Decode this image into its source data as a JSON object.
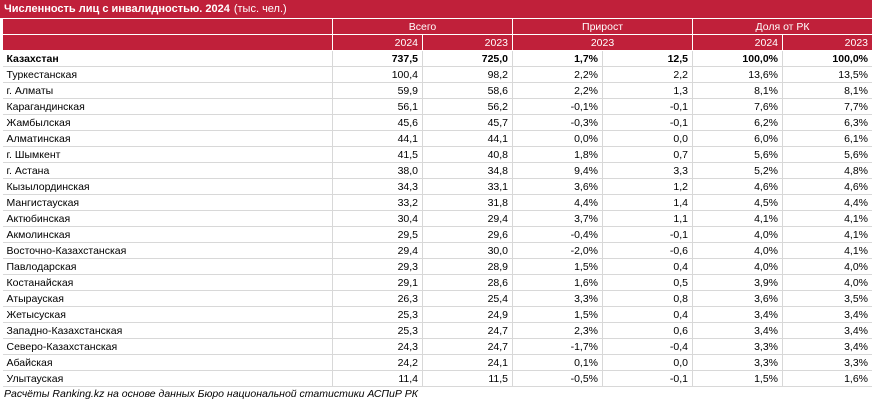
{
  "title": {
    "bold": "Численность лиц с инвалидностью. 2024",
    "unit": "(тыс. чел.)"
  },
  "headers": {
    "group1": "Всего",
    "group2": "Прирост",
    "group3": "Доля от РК",
    "g1_y1": "2024",
    "g1_y2": "2023",
    "g2_y1": "2023",
    "g3_y1": "2024",
    "g3_y2": "2023"
  },
  "rows": [
    {
      "name": "Казахстан",
      "v2024": "737,5",
      "v2023": "725,0",
      "gr_pct": "1,7%",
      "gr_abs": "12,5",
      "sh2024": "100,0%",
      "sh2023": "100,0%"
    },
    {
      "name": "Туркестанская",
      "v2024": "100,4",
      "v2023": "98,2",
      "gr_pct": "2,2%",
      "gr_abs": "2,2",
      "sh2024": "13,6%",
      "sh2023": "13,5%"
    },
    {
      "name": "г. Алматы",
      "v2024": "59,9",
      "v2023": "58,6",
      "gr_pct": "2,2%",
      "gr_abs": "1,3",
      "sh2024": "8,1%",
      "sh2023": "8,1%"
    },
    {
      "name": "Карагандинская",
      "v2024": "56,1",
      "v2023": "56,2",
      "gr_pct": "-0,1%",
      "gr_abs": "-0,1",
      "sh2024": "7,6%",
      "sh2023": "7,7%"
    },
    {
      "name": "Жамбылская",
      "v2024": "45,6",
      "v2023": "45,7",
      "gr_pct": "-0,3%",
      "gr_abs": "-0,1",
      "sh2024": "6,2%",
      "sh2023": "6,3%"
    },
    {
      "name": "Алматинская",
      "v2024": "44,1",
      "v2023": "44,1",
      "gr_pct": "0,0%",
      "gr_abs": "0,0",
      "sh2024": "6,0%",
      "sh2023": "6,1%"
    },
    {
      "name": "г. Шымкент",
      "v2024": "41,5",
      "v2023": "40,8",
      "gr_pct": "1,8%",
      "gr_abs": "0,7",
      "sh2024": "5,6%",
      "sh2023": "5,6%"
    },
    {
      "name": "г. Астана",
      "v2024": "38,0",
      "v2023": "34,8",
      "gr_pct": "9,4%",
      "gr_abs": "3,3",
      "sh2024": "5,2%",
      "sh2023": "4,8%"
    },
    {
      "name": "Кызылординская",
      "v2024": "34,3",
      "v2023": "33,1",
      "gr_pct": "3,6%",
      "gr_abs": "1,2",
      "sh2024": "4,6%",
      "sh2023": "4,6%"
    },
    {
      "name": "Мангистауская",
      "v2024": "33,2",
      "v2023": "31,8",
      "gr_pct": "4,4%",
      "gr_abs": "1,4",
      "sh2024": "4,5%",
      "sh2023": "4,4%"
    },
    {
      "name": "Актюбинская",
      "v2024": "30,4",
      "v2023": "29,4",
      "gr_pct": "3,7%",
      "gr_abs": "1,1",
      "sh2024": "4,1%",
      "sh2023": "4,1%"
    },
    {
      "name": "Акмолинская",
      "v2024": "29,5",
      "v2023": "29,6",
      "gr_pct": "-0,4%",
      "gr_abs": "-0,1",
      "sh2024": "4,0%",
      "sh2023": "4,1%"
    },
    {
      "name": "Восточно-Казахстанская",
      "v2024": "29,4",
      "v2023": "30,0",
      "gr_pct": "-2,0%",
      "gr_abs": "-0,6",
      "sh2024": "4,0%",
      "sh2023": "4,1%"
    },
    {
      "name": "Павлодарская",
      "v2024": "29,3",
      "v2023": "28,9",
      "gr_pct": "1,5%",
      "gr_abs": "0,4",
      "sh2024": "4,0%",
      "sh2023": "4,0%"
    },
    {
      "name": "Костанайская",
      "v2024": "29,1",
      "v2023": "28,6",
      "gr_pct": "1,6%",
      "gr_abs": "0,5",
      "sh2024": "3,9%",
      "sh2023": "4,0%"
    },
    {
      "name": "Атырауская",
      "v2024": "26,3",
      "v2023": "25,4",
      "gr_pct": "3,3%",
      "gr_abs": "0,8",
      "sh2024": "3,6%",
      "sh2023": "3,5%"
    },
    {
      "name": "Жетысуская",
      "v2024": "25,3",
      "v2023": "24,9",
      "gr_pct": "1,5%",
      "gr_abs": "0,4",
      "sh2024": "3,4%",
      "sh2023": "3,4%"
    },
    {
      "name": "Западно-Казахстанская",
      "v2024": "25,3",
      "v2023": "24,7",
      "gr_pct": "2,3%",
      "gr_abs": "0,6",
      "sh2024": "3,4%",
      "sh2023": "3,4%"
    },
    {
      "name": "Северо-Казахстанская",
      "v2024": "24,3",
      "v2023": "24,7",
      "gr_pct": "-1,7%",
      "gr_abs": "-0,4",
      "sh2024": "3,3%",
      "sh2023": "3,4%"
    },
    {
      "name": "Абайская",
      "v2024": "24,2",
      "v2023": "24,1",
      "gr_pct": "0,1%",
      "gr_abs": "0,0",
      "sh2024": "3,3%",
      "sh2023": "3,3%"
    },
    {
      "name": "Улытауская",
      "v2024": "11,4",
      "v2023": "11,5",
      "gr_pct": "-0,5%",
      "gr_abs": "-0,1",
      "sh2024": "1,5%",
      "sh2023": "1,6%"
    }
  ],
  "footer": "Расчёты Ranking.kz на основе данных Бюро национальной статистики АСПиР РК",
  "colors": {
    "header_bg": "#c0203a",
    "header_text": "#ffffff"
  }
}
